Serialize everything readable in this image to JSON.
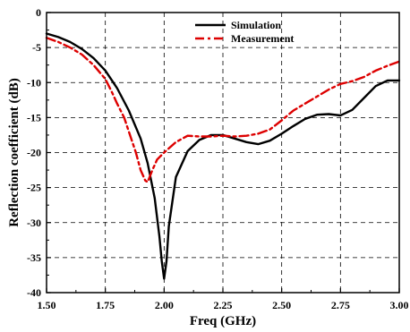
{
  "chart_data": {
    "type": "line",
    "title": "",
    "xlabel": "Freq (GHz)",
    "ylabel": "Reflection coefficient (dB)",
    "xlim": [
      1.5,
      3.0
    ],
    "ylim": [
      -40,
      0
    ],
    "x_ticks": [
      "1.50",
      "1.75",
      "2.00",
      "2.25",
      "2.50",
      "2.75",
      "3.00"
    ],
    "y_ticks": [
      "0",
      "-5",
      "-10",
      "-15",
      "-20",
      "-25",
      "-30",
      "-35",
      "-40"
    ],
    "grid": true,
    "legend_position": "top-right",
    "series": [
      {
        "name": "Simulation",
        "color": "#000000",
        "style": "solid",
        "x": [
          1.5,
          1.55,
          1.6,
          1.65,
          1.7,
          1.75,
          1.8,
          1.85,
          1.9,
          1.93,
          1.96,
          1.98,
          1.99,
          2.0,
          2.01,
          2.02,
          2.05,
          2.1,
          2.15,
          2.2,
          2.25,
          2.3,
          2.35,
          2.4,
          2.45,
          2.5,
          2.55,
          2.6,
          2.65,
          2.7,
          2.75,
          2.8,
          2.85,
          2.9,
          2.95,
          3.0
        ],
        "y": [
          -3.0,
          -3.5,
          -4.2,
          -5.2,
          -6.5,
          -8.3,
          -10.8,
          -14.0,
          -18.0,
          -21.5,
          -26.5,
          -32.0,
          -35.5,
          -38.0,
          -35.5,
          -30.5,
          -23.5,
          -19.8,
          -18.2,
          -17.5,
          -17.5,
          -18.0,
          -18.5,
          -18.8,
          -18.3,
          -17.3,
          -16.2,
          -15.2,
          -14.6,
          -14.5,
          -14.7,
          -13.9,
          -12.2,
          -10.5,
          -9.7,
          -9.7
        ]
      },
      {
        "name": "Measurement",
        "color": "#dd0000",
        "style": "dashdot",
        "x": [
          1.5,
          1.55,
          1.6,
          1.65,
          1.7,
          1.75,
          1.78,
          1.8,
          1.83,
          1.85,
          1.88,
          1.9,
          1.92,
          1.93,
          1.95,
          1.97,
          2.0,
          2.05,
          2.1,
          2.15,
          2.2,
          2.25,
          2.3,
          2.35,
          2.4,
          2.45,
          2.5,
          2.55,
          2.6,
          2.65,
          2.7,
          2.75,
          2.8,
          2.85,
          2.9,
          2.95,
          3.0
        ],
        "y": [
          -3.6,
          -4.2,
          -5.0,
          -6.0,
          -7.5,
          -9.5,
          -11.5,
          -13.0,
          -15.0,
          -17.0,
          -20.0,
          -22.5,
          -24.0,
          -24.2,
          -22.5,
          -21.0,
          -20.0,
          -18.5,
          -17.6,
          -17.7,
          -17.7,
          -17.6,
          -17.7,
          -17.6,
          -17.3,
          -16.7,
          -15.4,
          -14.0,
          -13.0,
          -12.0,
          -11.0,
          -10.2,
          -9.8,
          -9.2,
          -8.3,
          -7.6,
          -7.0
        ]
      }
    ]
  }
}
